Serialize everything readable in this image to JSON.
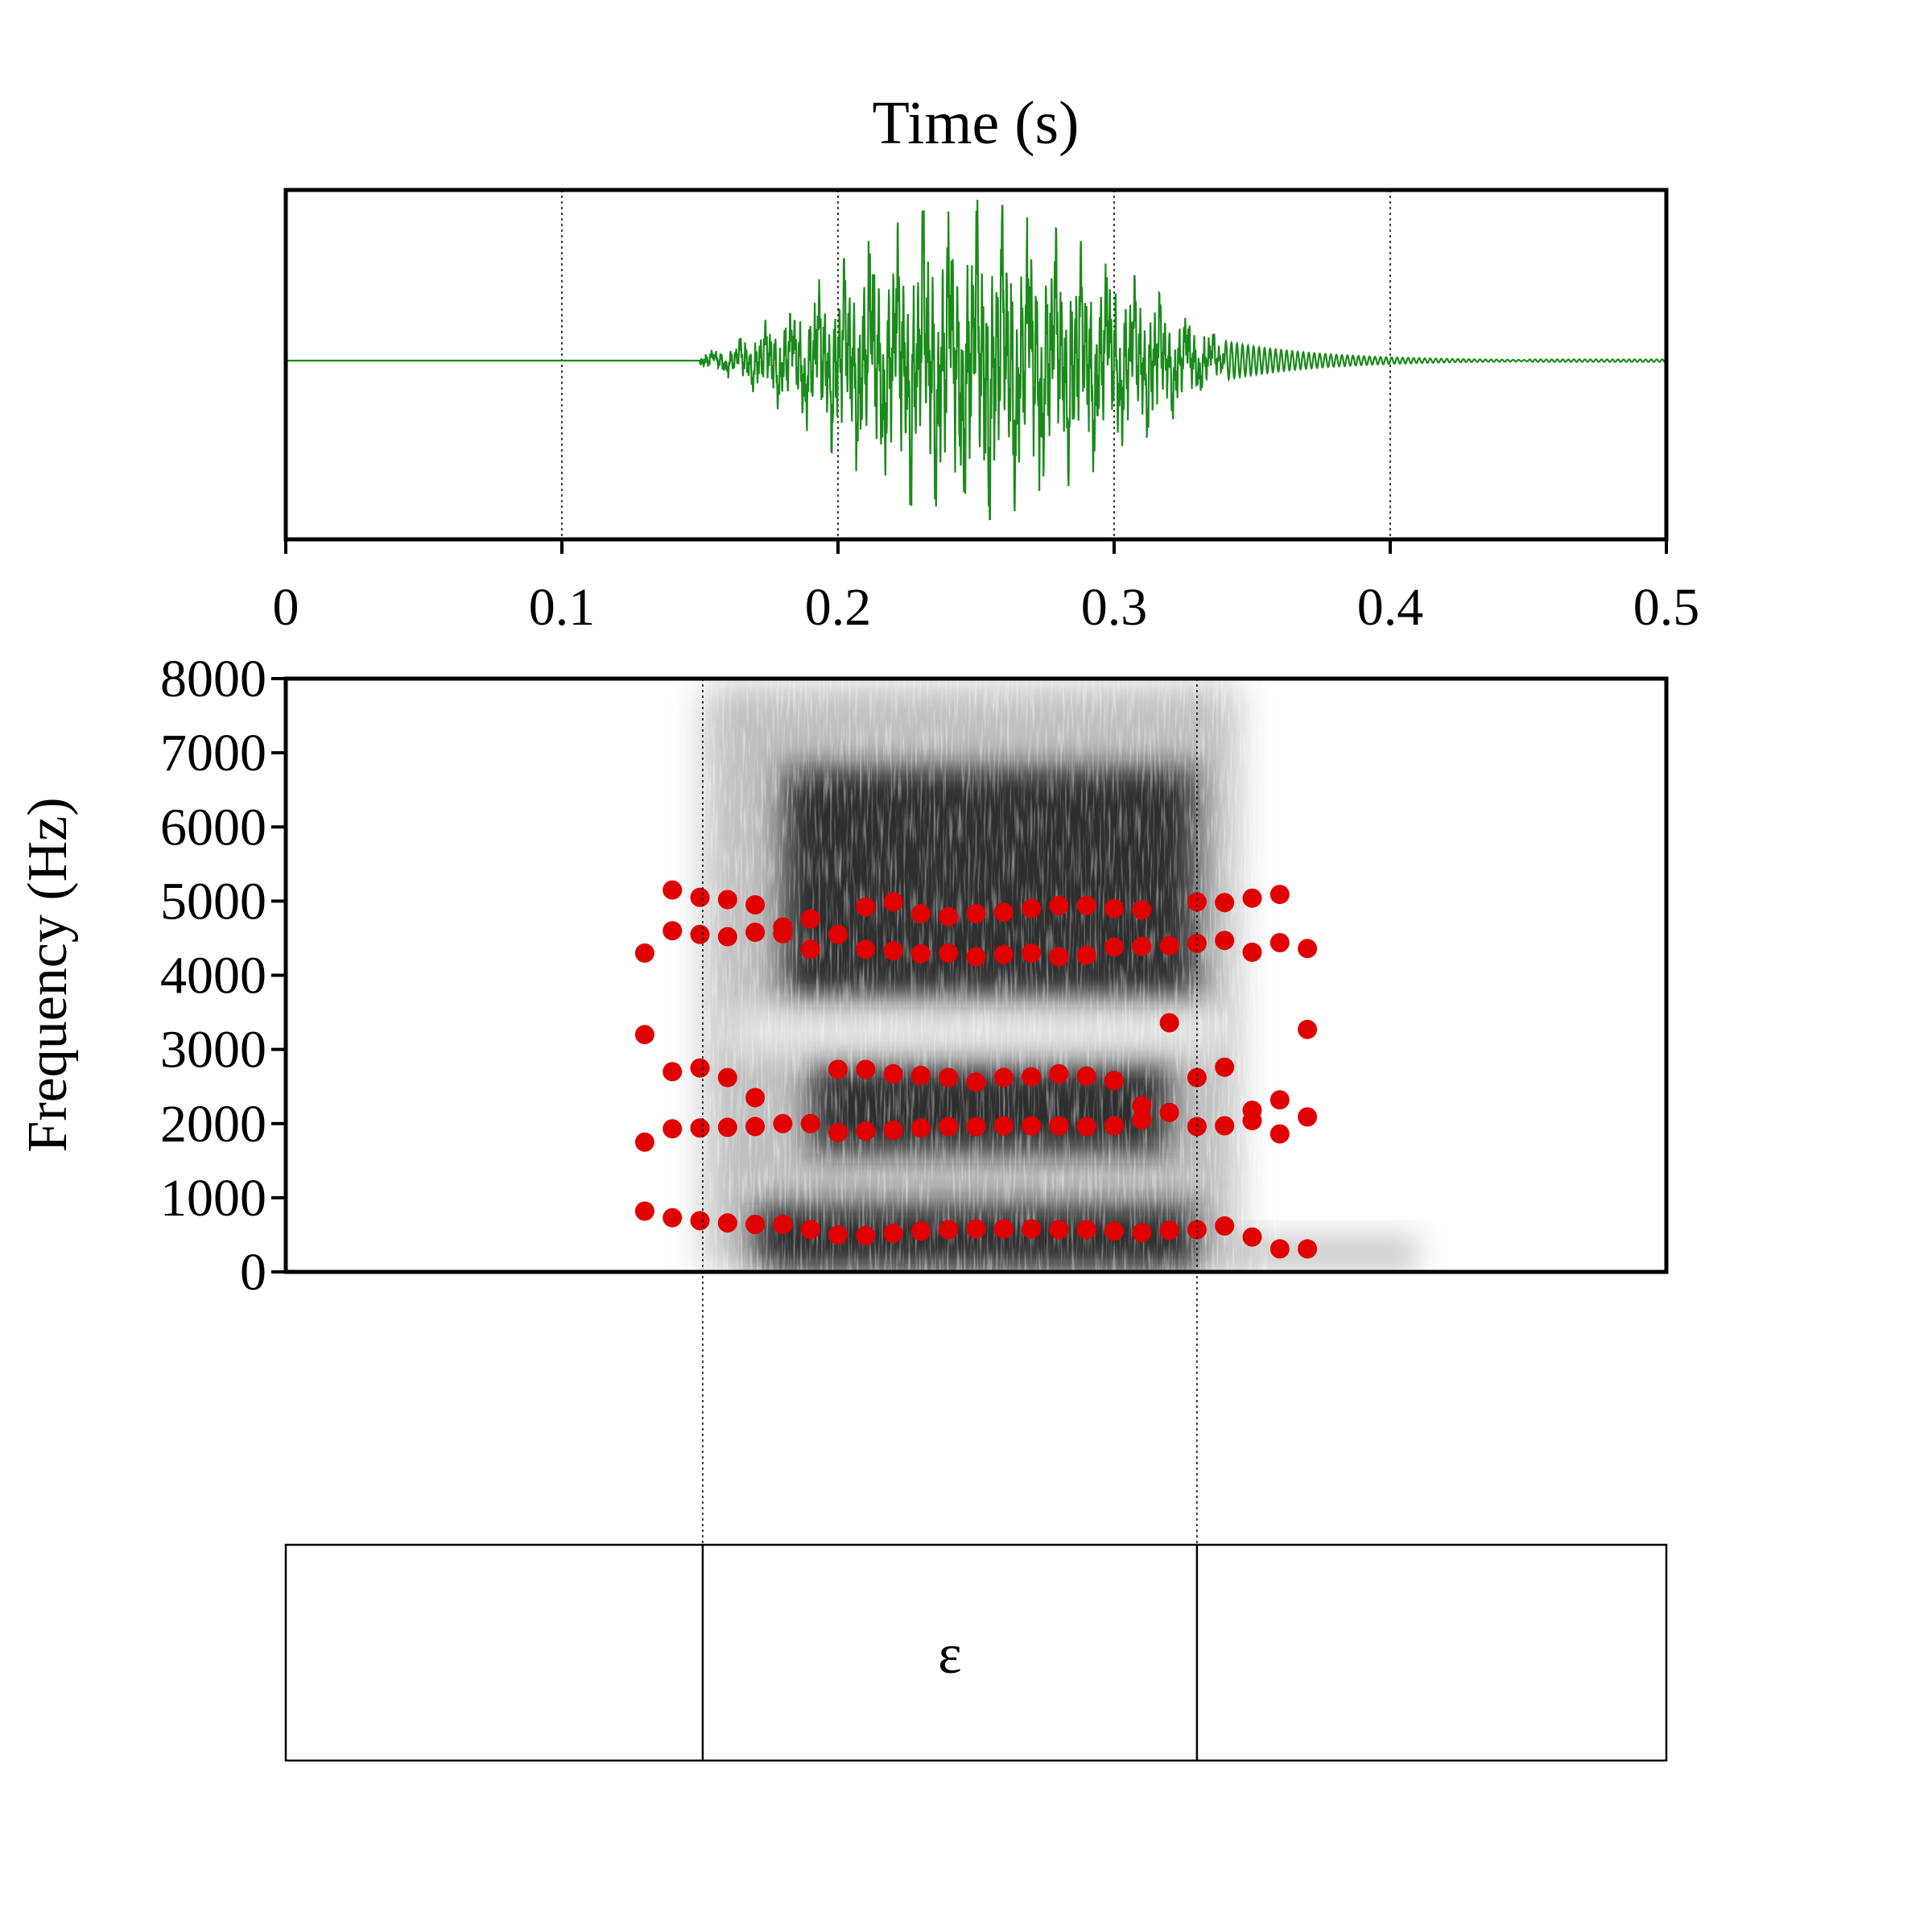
{
  "chart_data": {
    "type": "scatter",
    "panels": [
      "waveform",
      "spectrogram",
      "textgrid"
    ],
    "title": "Time (s)",
    "xlabel": "Time (s)",
    "ylabel": "Frequency (Hz)",
    "xlim": [
      0,
      0.5
    ],
    "ylim": [
      0,
      8000
    ],
    "x_ticks": [
      "0",
      "0.1",
      "0.2",
      "0.3",
      "0.4",
      "0.5"
    ],
    "y_ticks": [
      "0",
      "1000",
      "2000",
      "3000",
      "4000",
      "5000",
      "6000",
      "7000",
      "8000"
    ],
    "waveform": {
      "color": "#1a8a1a",
      "gridlines_at": [
        0.1,
        0.2,
        0.3,
        0.4
      ],
      "voicing_onset": 0.15,
      "peak_time": 0.25,
      "decay_end": 0.45
    },
    "spectrogram": {
      "colormap": "grayscale",
      "dark_regions": [
        {
          "t0": 0.17,
          "t1": 0.33,
          "f0": 0,
          "f1": 900
        },
        {
          "t0": 0.19,
          "t1": 0.32,
          "f0": 1600,
          "f1": 2800
        },
        {
          "t0": 0.18,
          "t1": 0.33,
          "f0": 3700,
          "f1": 6800
        }
      ]
    },
    "formant_color": "#e00000",
    "series": [
      {
        "x": [
          0.13,
          0.14,
          0.15,
          0.16,
          0.17,
          0.18,
          0.19,
          0.2,
          0.21,
          0.22,
          0.23,
          0.24,
          0.25,
          0.26,
          0.27,
          0.28,
          0.29,
          0.3,
          0.31,
          0.32,
          0.33,
          0.34,
          0.35,
          0.36,
          0.37
        ],
        "y": [
          820,
          730,
          690,
          660,
          640,
          640,
          570,
          500,
          490,
          520,
          550,
          570,
          580,
          580,
          580,
          570,
          570,
          550,
          530,
          560,
          570,
          620,
          470,
          310,
          310
        ]
      },
      {
        "x": [
          0.13,
          0.14,
          0.15,
          0.16,
          0.17,
          0.18,
          0.19,
          0.2,
          0.21,
          0.22,
          0.23,
          0.24,
          0.25,
          0.26,
          0.27,
          0.28,
          0.29,
          0.3,
          0.31,
          0.32,
          0.33,
          0.34,
          0.35,
          0.36,
          0.37
        ],
        "y": [
          1750,
          1930,
          1940,
          1950,
          1960,
          2000,
          2000,
          1880,
          1900,
          1910,
          1940,
          1960,
          1960,
          1970,
          1970,
          1970,
          1960,
          1970,
          2050,
          2150,
          1960,
          1970,
          2040,
          1860,
          2090
        ]
      },
      {
        "x": [
          0.13,
          0.14,
          0.15,
          0.16,
          0.17,
          0.2,
          0.21,
          0.22,
          0.23,
          0.24,
          0.25,
          0.26,
          0.27,
          0.28,
          0.29,
          0.3,
          0.31,
          0.32,
          0.33,
          0.34,
          0.35,
          0.36,
          0.37
        ],
        "y": [
          3200,
          2700,
          2750,
          2620,
          2350,
          2730,
          2730,
          2670,
          2650,
          2620,
          2560,
          2620,
          2630,
          2670,
          2640,
          2580,
          2240,
          3360,
          2620,
          2760,
          2180,
          2320,
          3270
        ]
      },
      {
        "x": [
          0.13,
          0.14,
          0.15,
          0.16,
          0.17,
          0.18,
          0.19,
          0.2,
          0.21,
          0.22,
          0.23,
          0.24,
          0.25,
          0.26,
          0.27,
          0.28,
          0.29,
          0.3,
          0.31,
          0.32,
          0.33,
          0.34,
          0.35,
          0.36,
          0.37
        ],
        "y": [
          4300,
          4600,
          4550,
          4520,
          4580,
          4560,
          4350,
          4550,
          4350,
          4330,
          4290,
          4300,
          4250,
          4280,
          4300,
          4250,
          4270,
          4380,
          4390,
          4400,
          4430,
          4470,
          4310,
          4440,
          4360
        ]
      },
      {
        "x": [
          0.14,
          0.15,
          0.16,
          0.17,
          0.18,
          0.19,
          0.21,
          0.22,
          0.23,
          0.24,
          0.25,
          0.26,
          0.27,
          0.28,
          0.29,
          0.3,
          0.31,
          0.33,
          0.34,
          0.35,
          0.36
        ],
        "y": [
          5150,
          5050,
          5020,
          4950,
          4650,
          4760,
          4920,
          4990,
          4830,
          4790,
          4830,
          4850,
          4900,
          4940,
          4940,
          4900,
          4880,
          4990,
          4980,
          5040,
          5090
        ]
      }
    ],
    "segments": [
      {
        "label": "",
        "start": 0.0,
        "end": 0.151
      },
      {
        "label": "ɛ",
        "start": 0.151,
        "end": 0.33
      },
      {
        "label": "",
        "start": 0.33,
        "end": 0.5
      }
    ]
  }
}
